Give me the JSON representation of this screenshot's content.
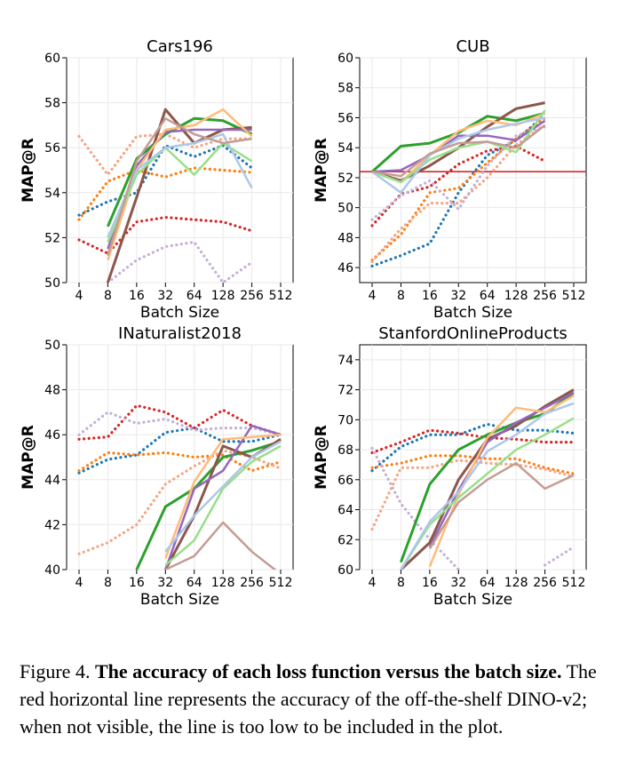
{
  "caption": {
    "label": "Figure 4.",
    "bold": "The accuracy of each loss function versus the batch size.",
    "rest": "The red horizontal line represents the accuracy of the off-the-shelf DINO-v2; when not visible, the line is too low to be included in the plot."
  },
  "colors": {
    "blue": "#1f77b4",
    "orange": "#ff7f0e",
    "green": "#2ca02c",
    "red": "#d62728",
    "purple": "#9467bd",
    "brown": "#8c564b",
    "pink": "#e377c2",
    "gray": "#7f7f7f",
    "olive": "#bcbd22",
    "cyan": "#17becf",
    "light_red": "#f4a582",
    "light_purple": "#c5b0d5",
    "light_green": "#98df8a",
    "light_orange": "#ffbb78",
    "light_blue": "#aec7e8",
    "tan": "#c49c94",
    "baseline": "#d62728"
  },
  "chart_data": [
    {
      "type": "line",
      "title": "Cars196",
      "xlabel": "Batch Size",
      "ylabel": "MAP@R",
      "x": [
        4,
        8,
        16,
        32,
        64,
        128,
        256,
        512
      ],
      "xticklabels": [
        "4",
        "8",
        "16",
        "32",
        "64",
        "128",
        "256",
        "512"
      ],
      "ylim": [
        50,
        60
      ],
      "yticks": [
        50,
        52,
        54,
        56,
        58,
        60
      ],
      "series": [
        {
          "name": "solid-green",
          "color": "#2ca02c",
          "style": "solid",
          "width": 3,
          "values": [
            null,
            52.5,
            55.5,
            56.6,
            57.3,
            57.2,
            56.6,
            null
          ]
        },
        {
          "name": "solid-brown",
          "color": "#8c564b",
          "style": "solid",
          "width": 3,
          "values": [
            null,
            50.0,
            53.8,
            57.7,
            56.2,
            56.8,
            56.9,
            null
          ]
        },
        {
          "name": "solid-purple",
          "color": "#9467bd",
          "style": "solid",
          "width": 2.5,
          "values": [
            null,
            51.5,
            55.2,
            56.7,
            56.8,
            56.8,
            56.8,
            null
          ]
        },
        {
          "name": "solid-light-orange",
          "color": "#ffbb78",
          "style": "solid",
          "width": 2.5,
          "values": [
            null,
            51.0,
            55.0,
            56.8,
            57.0,
            57.7,
            56.5,
            null
          ]
        },
        {
          "name": "solid-light-green",
          "color": "#98df8a",
          "style": "solid",
          "width": 2.5,
          "values": [
            null,
            51.8,
            54.8,
            56.0,
            54.8,
            56.2,
            55.4,
            null
          ]
        },
        {
          "name": "solid-light-blue",
          "color": "#aec7e8",
          "style": "solid",
          "width": 2.5,
          "values": [
            null,
            52.0,
            55.0,
            56.0,
            56.2,
            56.6,
            54.2,
            null
          ]
        },
        {
          "name": "solid-tan",
          "color": "#c49c94",
          "style": "solid",
          "width": 2.5,
          "values": [
            null,
            51.2,
            55.4,
            57.3,
            56.6,
            56.2,
            56.4,
            null
          ]
        },
        {
          "name": "dotted-blue",
          "color": "#1f77b4",
          "style": "dotted",
          "width": 3,
          "values": [
            53.0,
            53.6,
            54.0,
            56.1,
            55.6,
            56.1,
            55.1,
            null
          ]
        },
        {
          "name": "dotted-orange",
          "color": "#ff7f0e",
          "style": "dotted",
          "width": 3,
          "values": [
            52.8,
            54.5,
            55.0,
            54.7,
            55.1,
            55.0,
            54.9,
            null
          ]
        },
        {
          "name": "dotted-red",
          "color": "#d62728",
          "style": "dotted",
          "width": 3,
          "values": [
            51.9,
            51.3,
            52.7,
            52.9,
            52.8,
            52.7,
            52.3,
            null
          ]
        },
        {
          "name": "dotted-light-red",
          "color": "#f4a582",
          "style": "dotted",
          "width": 3,
          "values": [
            56.5,
            54.8,
            56.5,
            56.6,
            56.0,
            56.4,
            56.4,
            null
          ]
        },
        {
          "name": "dotted-light-purple",
          "color": "#c5b0d5",
          "style": "dotted",
          "width": 3,
          "values": [
            null,
            50.0,
            51.0,
            51.6,
            51.8,
            50.0,
            50.9,
            null
          ]
        }
      ],
      "baseline": null
    },
    {
      "type": "line",
      "title": "CUB",
      "xlabel": "Batch Size",
      "ylabel": "MAP@R",
      "x": [
        4,
        8,
        16,
        32,
        64,
        128,
        256,
        512
      ],
      "xticklabels": [
        "4",
        "8",
        "16",
        "32",
        "64",
        "128",
        "256",
        "512"
      ],
      "ylim": [
        45,
        60
      ],
      "yticks": [
        46,
        48,
        50,
        52,
        54,
        56,
        58,
        60
      ],
      "series": [
        {
          "name": "solid-green",
          "color": "#2ca02c",
          "style": "solid",
          "width": 3,
          "values": [
            52.4,
            54.1,
            54.3,
            55.0,
            56.1,
            55.8,
            56.3,
            null
          ]
        },
        {
          "name": "solid-brown",
          "color": "#8c564b",
          "style": "solid",
          "width": 3,
          "values": [
            52.4,
            51.8,
            52.8,
            54.0,
            55.4,
            56.6,
            57.0,
            null
          ]
        },
        {
          "name": "solid-purple",
          "color": "#9467bd",
          "style": "solid",
          "width": 2.5,
          "values": [
            52.4,
            52.5,
            53.5,
            54.8,
            54.8,
            54.5,
            55.8,
            null
          ]
        },
        {
          "name": "solid-light-orange",
          "color": "#ffbb78",
          "style": "solid",
          "width": 2.5,
          "values": [
            52.4,
            51.7,
            53.5,
            55.1,
            55.8,
            55.5,
            56.3,
            null
          ]
        },
        {
          "name": "solid-light-green",
          "color": "#98df8a",
          "style": "solid",
          "width": 2.5,
          "values": [
            52.4,
            51.7,
            53.2,
            54.0,
            54.4,
            53.7,
            56.5,
            null
          ]
        },
        {
          "name": "solid-light-blue",
          "color": "#aec7e8",
          "style": "solid",
          "width": 2.5,
          "values": [
            52.4,
            51.0,
            53.5,
            54.6,
            55.2,
            55.6,
            56.0,
            null
          ]
        },
        {
          "name": "solid-tan",
          "color": "#c49c94",
          "style": "solid",
          "width": 2.5,
          "values": [
            52.4,
            52.1,
            53.6,
            54.3,
            54.4,
            54.0,
            55.5,
            null
          ]
        },
        {
          "name": "dotted-blue",
          "color": "#1f77b4",
          "style": "dotted",
          "width": 3,
          "values": [
            46.1,
            46.8,
            47.6,
            51.0,
            53.5,
            54.5,
            56.2,
            null
          ]
        },
        {
          "name": "dotted-orange",
          "color": "#ff7f0e",
          "style": "dotted",
          "width": 3,
          "values": [
            46.5,
            48.2,
            51.0,
            51.3,
            53.0,
            54.6,
            56.0,
            null
          ]
        },
        {
          "name": "dotted-red",
          "color": "#d62728",
          "style": "dotted",
          "width": 3,
          "values": [
            48.8,
            50.9,
            51.4,
            52.9,
            53.8,
            54.1,
            53.1,
            null
          ]
        },
        {
          "name": "dotted-light-red",
          "color": "#f4a582",
          "style": "dotted",
          "width": 3,
          "values": [
            46.4,
            48.6,
            50.3,
            50.3,
            52.0,
            54.2,
            55.5,
            null
          ]
        },
        {
          "name": "dotted-light-purple",
          "color": "#c5b0d5",
          "style": "dotted",
          "width": 3,
          "values": [
            49.2,
            50.8,
            51.8,
            49.9,
            52.8,
            54.8,
            55.4,
            null
          ]
        }
      ],
      "baseline": 52.4
    },
    {
      "type": "line",
      "title": "INaturalist2018",
      "xlabel": "Batch Size",
      "ylabel": "MAP@R",
      "x": [
        4,
        8,
        16,
        32,
        64,
        128,
        256,
        512
      ],
      "xticklabels": [
        "4",
        "8",
        "16",
        "32",
        "64",
        "128",
        "256",
        "512"
      ],
      "ylim": [
        40,
        50
      ],
      "yticks": [
        40,
        42,
        44,
        46,
        48,
        50
      ],
      "series": [
        {
          "name": "solid-green",
          "color": "#2ca02c",
          "style": "solid",
          "width": 3,
          "values": [
            null,
            null,
            40.0,
            42.8,
            43.6,
            45.0,
            45.3,
            45.7
          ]
        },
        {
          "name": "solid-brown",
          "color": "#8c564b",
          "style": "solid",
          "width": 3,
          "values": [
            null,
            null,
            null,
            40.0,
            42.4,
            45.5,
            45.0,
            45.8
          ]
        },
        {
          "name": "solid-purple",
          "color": "#9467bd",
          "style": "solid",
          "width": 2.5,
          "values": [
            null,
            null,
            null,
            40.0,
            43.6,
            44.4,
            46.4,
            46.0
          ]
        },
        {
          "name": "solid-light-orange",
          "color": "#ffbb78",
          "style": "solid",
          "width": 2.5,
          "values": [
            null,
            null,
            null,
            40.5,
            43.9,
            45.8,
            45.9,
            46.0
          ]
        },
        {
          "name": "solid-light-green",
          "color": "#98df8a",
          "style": "solid",
          "width": 2.5,
          "values": [
            null,
            null,
            null,
            40.2,
            41.3,
            43.6,
            44.8,
            45.5
          ]
        },
        {
          "name": "solid-light-blue",
          "color": "#aec7e8",
          "style": "solid",
          "width": 2.5,
          "values": [
            null,
            null,
            null,
            40.8,
            42.4,
            43.7,
            45.0,
            45.7
          ]
        },
        {
          "name": "solid-tan",
          "color": "#c49c94",
          "style": "solid",
          "width": 2.5,
          "values": [
            null,
            null,
            null,
            40.0,
            40.6,
            42.1,
            40.8,
            39.8
          ]
        },
        {
          "name": "dotted-blue",
          "color": "#1f77b4",
          "style": "dotted",
          "width": 3,
          "values": [
            44.3,
            44.9,
            45.1,
            46.1,
            46.3,
            45.7,
            45.7,
            46.0
          ]
        },
        {
          "name": "dotted-orange",
          "color": "#ff7f0e",
          "style": "dotted",
          "width": 3,
          "values": [
            44.4,
            45.2,
            45.1,
            45.2,
            45.0,
            45.1,
            44.4,
            44.8
          ]
        },
        {
          "name": "dotted-red",
          "color": "#d62728",
          "style": "dotted",
          "width": 3,
          "values": [
            45.8,
            45.9,
            47.3,
            47.0,
            46.3,
            47.1,
            46.4,
            46.0
          ]
        },
        {
          "name": "dotted-light-red",
          "color": "#f4a582",
          "style": "dotted",
          "width": 3,
          "values": [
            40.7,
            41.2,
            42.0,
            43.8,
            44.6,
            45.3,
            45.0,
            44.5
          ]
        },
        {
          "name": "dotted-light-purple",
          "color": "#c5b0d5",
          "style": "dotted",
          "width": 3,
          "values": [
            46.0,
            47.0,
            46.5,
            46.7,
            46.2,
            46.3,
            46.3,
            46.0
          ]
        }
      ],
      "baseline": null
    },
    {
      "type": "line",
      "title": "StanfordOnlineProducts",
      "xlabel": "Batch Size",
      "ylabel": "MAP@R",
      "x": [
        4,
        8,
        16,
        32,
        64,
        128,
        256,
        512
      ],
      "xticklabels": [
        "4",
        "8",
        "16",
        "32",
        "64",
        "128",
        "256",
        "512"
      ],
      "ylim": [
        60,
        75
      ],
      "yticks": [
        60,
        62,
        64,
        66,
        68,
        70,
        72,
        74
      ],
      "series": [
        {
          "name": "solid-green",
          "color": "#2ca02c",
          "style": "solid",
          "width": 3,
          "values": [
            null,
            60.5,
            65.7,
            68.0,
            69.0,
            69.8,
            70.4,
            71.8
          ]
        },
        {
          "name": "solid-brown",
          "color": "#8c564b",
          "style": "solid",
          "width": 3,
          "values": [
            null,
            60.0,
            61.8,
            66.0,
            68.7,
            69.6,
            70.9,
            72.0
          ]
        },
        {
          "name": "solid-purple",
          "color": "#9467bd",
          "style": "solid",
          "width": 2.5,
          "values": [
            null,
            null,
            61.5,
            65.3,
            68.5,
            69.8,
            70.8,
            71.8
          ]
        },
        {
          "name": "solid-light-orange",
          "color": "#ffbb78",
          "style": "solid",
          "width": 2.5,
          "values": [
            null,
            null,
            60.2,
            65.0,
            68.8,
            70.8,
            70.5,
            71.6
          ]
        },
        {
          "name": "solid-light-green",
          "color": "#98df8a",
          "style": "solid",
          "width": 2.5,
          "values": [
            null,
            60.0,
            63.0,
            64.8,
            66.4,
            68.0,
            69.0,
            70.1
          ]
        },
        {
          "name": "solid-light-blue",
          "color": "#aec7e8",
          "style": "solid",
          "width": 2.5,
          "values": [
            null,
            60.0,
            63.2,
            65.2,
            67.9,
            69.0,
            70.4,
            71.1
          ]
        },
        {
          "name": "solid-tan",
          "color": "#c49c94",
          "style": "solid",
          "width": 2.5,
          "values": [
            null,
            null,
            61.4,
            64.5,
            66.0,
            67.1,
            65.4,
            66.3
          ]
        },
        {
          "name": "dotted-blue",
          "color": "#1f77b4",
          "style": "dotted",
          "width": 3,
          "values": [
            66.6,
            68.2,
            69.0,
            69.0,
            69.7,
            69.3,
            69.3,
            69.1
          ]
        },
        {
          "name": "dotted-orange",
          "color": "#ff7f0e",
          "style": "dotted",
          "width": 3,
          "values": [
            66.8,
            67.1,
            67.6,
            67.6,
            67.4,
            67.4,
            66.8,
            66.4
          ]
        },
        {
          "name": "dotted-red",
          "color": "#d62728",
          "style": "dotted",
          "width": 3,
          "values": [
            67.8,
            68.5,
            69.3,
            69.1,
            68.8,
            68.7,
            68.5,
            68.5
          ]
        },
        {
          "name": "dotted-light-red",
          "color": "#f4a582",
          "style": "dotted",
          "width": 3,
          "values": [
            62.7,
            66.8,
            66.8,
            67.3,
            67.1,
            67.0,
            66.7,
            66.2
          ]
        },
        {
          "name": "dotted-light-purple",
          "color": "#c5b0d5",
          "style": "dotted",
          "width": 3,
          "values": [
            68.1,
            64.4,
            62.0,
            60.0,
            null,
            null,
            60.3,
            61.5
          ]
        }
      ],
      "baseline": null
    }
  ]
}
